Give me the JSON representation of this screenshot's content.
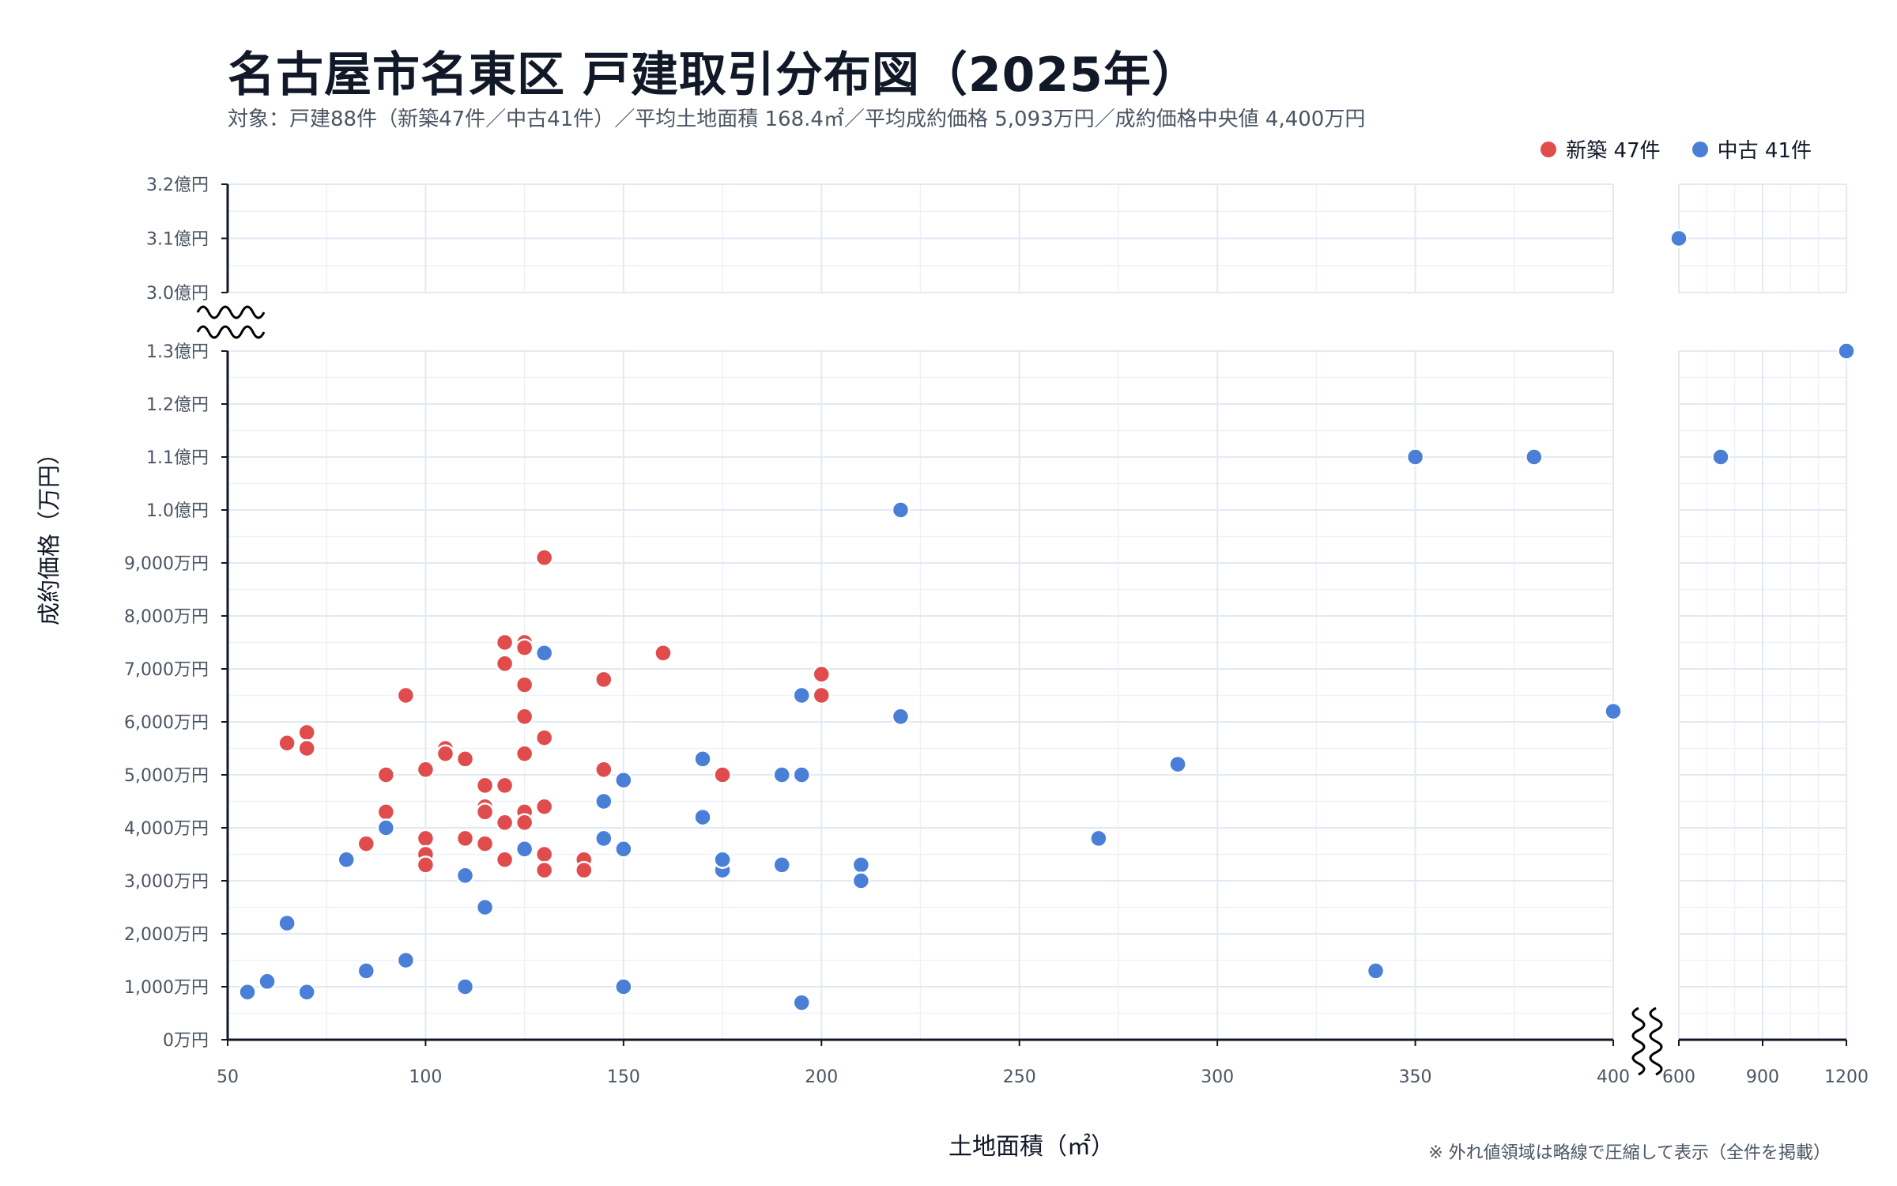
{
  "title": "名古屋市名東区 戸建取引分布図（2025年）",
  "subtitle": "対象：戸建88件（新築47件／中古41件）／平均土地面積 168.4㎡／平均成約価格 5,093万円／成約価格中央値 4,400万円",
  "note": "※ 外れ値領域は略線で圧縮して表示（全件を掲載）",
  "colors": {
    "new": "#e04c4c",
    "used": "#4a7fd8",
    "grid": "#e3e9f3",
    "axis": "#111827"
  },
  "chart_data": {
    "type": "scatter",
    "xlabel": "土地面積（㎡）",
    "ylabel": "成約価格（万円）",
    "broken_axes": true,
    "grid": true,
    "legend_position": "top-right",
    "x_segments": [
      {
        "range": [
          50,
          400
        ],
        "ticks": [
          "50",
          "100",
          "150",
          "200",
          "250",
          "300",
          "350",
          "400"
        ]
      },
      {
        "range": [
          600,
          1200
        ],
        "ticks": [
          "600",
          "900",
          "1200"
        ]
      }
    ],
    "y_segments": [
      {
        "range": [
          0,
          13000
        ],
        "ticks": [
          "0万円",
          "1,000万円",
          "2,000万円",
          "3,000万円",
          "4,000万円",
          "5,000万円",
          "6,000万円",
          "7,000万円",
          "8,000万円",
          "9,000万円",
          "1.0億円",
          "1.1億円",
          "1.2億円",
          "1.3億円"
        ]
      },
      {
        "range": [
          30000,
          32000
        ],
        "ticks": [
          "3.0億円",
          "3.1億円",
          "3.2億円"
        ]
      }
    ],
    "series": [
      {
        "name": "新築",
        "legend": "新築 47件",
        "color": "#e04c4c",
        "points": [
          [
            65,
            5600
          ],
          [
            70,
            5800
          ],
          [
            70,
            5500
          ],
          [
            85,
            3700
          ],
          [
            90,
            5000
          ],
          [
            90,
            4300
          ],
          [
            95,
            6500
          ],
          [
            100,
            5100
          ],
          [
            100,
            3800
          ],
          [
            100,
            3500
          ],
          [
            100,
            3300
          ],
          [
            105,
            5500
          ],
          [
            105,
            5400
          ],
          [
            110,
            5300
          ],
          [
            110,
            3800
          ],
          [
            115,
            4800
          ],
          [
            115,
            4400
          ],
          [
            115,
            4300
          ],
          [
            115,
            3700
          ],
          [
            120,
            7500
          ],
          [
            120,
            7100
          ],
          [
            120,
            4800
          ],
          [
            120,
            4100
          ],
          [
            120,
            3400
          ],
          [
            125,
            7500
          ],
          [
            125,
            7400
          ],
          [
            125,
            6700
          ],
          [
            125,
            6100
          ],
          [
            125,
            5400
          ],
          [
            125,
            4300
          ],
          [
            125,
            4100
          ],
          [
            130,
            9100
          ],
          [
            130,
            5700
          ],
          [
            130,
            4400
          ],
          [
            130,
            3500
          ],
          [
            130,
            3200
          ],
          [
            140,
            3400
          ],
          [
            140,
            3200
          ],
          [
            145,
            6800
          ],
          [
            145,
            5100
          ],
          [
            160,
            7300
          ],
          [
            175,
            5000
          ],
          [
            200,
            6900
          ],
          [
            200,
            6500
          ],
          [
            110,
            5300
          ],
          [
            120,
            4100
          ],
          [
            115,
            4300
          ]
        ]
      },
      {
        "name": "中古",
        "legend": "中古 41件",
        "color": "#4a7fd8",
        "points": [
          [
            55,
            900
          ],
          [
            60,
            1100
          ],
          [
            65,
            2200
          ],
          [
            70,
            900
          ],
          [
            80,
            3400
          ],
          [
            85,
            1300
          ],
          [
            90,
            4000
          ],
          [
            95,
            1500
          ],
          [
            110,
            3100
          ],
          [
            110,
            1000
          ],
          [
            115,
            2500
          ],
          [
            125,
            3600
          ],
          [
            130,
            7300
          ],
          [
            145,
            4500
          ],
          [
            145,
            3800
          ],
          [
            150,
            4900
          ],
          [
            150,
            3600
          ],
          [
            150,
            1000
          ],
          [
            170,
            5300
          ],
          [
            170,
            4200
          ],
          [
            175,
            3400
          ],
          [
            175,
            3200
          ],
          [
            190,
            5000
          ],
          [
            190,
            3300
          ],
          [
            195,
            6500
          ],
          [
            195,
            5000
          ],
          [
            195,
            700
          ],
          [
            210,
            3300
          ],
          [
            210,
            3000
          ],
          [
            220,
            10000
          ],
          [
            220,
            6100
          ],
          [
            270,
            3800
          ],
          [
            290,
            5200
          ],
          [
            340,
            1300
          ],
          [
            350,
            11000
          ],
          [
            380,
            11000
          ],
          [
            400,
            6200
          ],
          [
            600,
            31000
          ],
          [
            750,
            11000
          ],
          [
            1200,
            13000
          ],
          [
            175,
            3400
          ]
        ]
      }
    ]
  }
}
